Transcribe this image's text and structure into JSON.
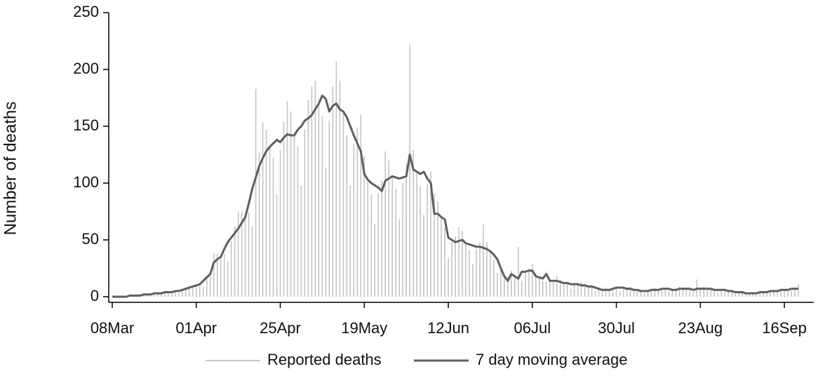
{
  "chart_data": {
    "type": "bar",
    "y_label": "Number of deaths",
    "categories": [
      "08Mar",
      null,
      null,
      null,
      null,
      null,
      null,
      null,
      null,
      null,
      null,
      null,
      null,
      null,
      null,
      null,
      null,
      null,
      null,
      null,
      null,
      null,
      null,
      null,
      "01Apr",
      null,
      null,
      null,
      null,
      null,
      null,
      null,
      null,
      null,
      null,
      null,
      null,
      null,
      null,
      null,
      null,
      null,
      null,
      null,
      null,
      null,
      null,
      null,
      "25Apr",
      null,
      null,
      null,
      null,
      null,
      null,
      null,
      null,
      null,
      null,
      null,
      null,
      null,
      null,
      null,
      null,
      null,
      null,
      null,
      null,
      null,
      null,
      null,
      "19May",
      null,
      null,
      null,
      null,
      null,
      null,
      null,
      null,
      null,
      null,
      null,
      null,
      null,
      null,
      null,
      null,
      null,
      null,
      null,
      null,
      null,
      null,
      null,
      "12Jun",
      null,
      null,
      null,
      null,
      null,
      null,
      null,
      null,
      null,
      null,
      null,
      null,
      null,
      null,
      null,
      null,
      null,
      null,
      null,
      null,
      null,
      null,
      null,
      "06Jul",
      null,
      null,
      null,
      null,
      null,
      null,
      null,
      null,
      null,
      null,
      null,
      null,
      null,
      null,
      null,
      null,
      null,
      null,
      null,
      null,
      null,
      null,
      null,
      "30Jul",
      null,
      null,
      null,
      null,
      null,
      null,
      null,
      null,
      null,
      null,
      null,
      null,
      null,
      null,
      null,
      null,
      null,
      null,
      null,
      null,
      null,
      null,
      null,
      "23Aug",
      null,
      null,
      null,
      null,
      null,
      null,
      null,
      null,
      null,
      null,
      null,
      null,
      null,
      null,
      null,
      null,
      null,
      null,
      null,
      null,
      null,
      null,
      null,
      "16Sep",
      null,
      null,
      null,
      null
    ],
    "series": [
      {
        "name": "Reported deaths",
        "type": "bar",
        "color": "#c4c4c4",
        "values": [
          0,
          0,
          0,
          0,
          0,
          1,
          1,
          1,
          1,
          2,
          2,
          2,
          2,
          3,
          3,
          5,
          5,
          4,
          5,
          3,
          6,
          8,
          10,
          10,
          10,
          10,
          9,
          16,
          22,
          38,
          38,
          35,
          38,
          31,
          49,
          62,
          75,
          75,
          70,
          74,
          62,
          183,
          127,
          153,
          147,
          132,
          122,
          90,
          129,
          154,
          172,
          163,
          142,
          132,
          98,
          147,
          173,
          185,
          190,
          170,
          159,
          113,
          155,
          185,
          207,
          190,
          163,
          142,
          98,
          135,
          149,
          160,
          124,
          103,
          90,
          64,
          91,
          102,
          128,
          120,
          106,
          95,
          68,
          100,
          117,
          222,
          129,
          110,
          97,
          72,
          99,
          110,
          91,
          84,
          70,
          61,
          34,
          48,
          53,
          61,
          58,
          47,
          41,
          29,
          42,
          48,
          64,
          48,
          40,
          33,
          21,
          24,
          20,
          18,
          23,
          18,
          44,
          14,
          21,
          25,
          29,
          21,
          17,
          14,
          13,
          13,
          15,
          18,
          15,
          12,
          11,
          7,
          10,
          12,
          13,
          12,
          9,
          8,
          5,
          7,
          7,
          8,
          7,
          7,
          7,
          5,
          8,
          8,
          9,
          7,
          6,
          5,
          3,
          5,
          7,
          8,
          7,
          7,
          6,
          5,
          6,
          7,
          9,
          8,
          7,
          6,
          4,
          15,
          8,
          9,
          8,
          7,
          5,
          4,
          6,
          7,
          6,
          6,
          4,
          4,
          3,
          3,
          3,
          4,
          3,
          4,
          4,
          3,
          5,
          6,
          6,
          7,
          6,
          5,
          5,
          7,
          11
        ]
      },
      {
        "name": "7 day moving average",
        "type": "line",
        "color": "#5f5f5f",
        "values": [
          0,
          0,
          0,
          0,
          0,
          1,
          1,
          1,
          1,
          2,
          2,
          2,
          3,
          3,
          3,
          4,
          4,
          4,
          5,
          5,
          6,
          7,
          8,
          9,
          10,
          11,
          14,
          17,
          20,
          30,
          33,
          35,
          42,
          48,
          52,
          56,
          60,
          65,
          70,
          82,
          95,
          105,
          115,
          122,
          128,
          132,
          135,
          138,
          136,
          140,
          143,
          142,
          142,
          147,
          150,
          155,
          157,
          160,
          165,
          170,
          177,
          174,
          163,
          168,
          170,
          165,
          163,
          158,
          150,
          142,
          135,
          128,
          108,
          103,
          100,
          98,
          96,
          93,
          102,
          104,
          106,
          105,
          104,
          105,
          106,
          125,
          112,
          110,
          108,
          110,
          104,
          100,
          73,
          73,
          70,
          68,
          52,
          50,
          48,
          49,
          50,
          47,
          46,
          45,
          44,
          44,
          43,
          42,
          40,
          37,
          33,
          25,
          18,
          14,
          20,
          18,
          16,
          22,
          22,
          23,
          23,
          18,
          17,
          16,
          20,
          14,
          14,
          14,
          13,
          12,
          12,
          11,
          11,
          11,
          10,
          10,
          9,
          9,
          8,
          7,
          6,
          6,
          6,
          7,
          8,
          8,
          8,
          7,
          7,
          6,
          6,
          5,
          5,
          5,
          6,
          6,
          6,
          7,
          7,
          7,
          6,
          6,
          7,
          7,
          7,
          7,
          6,
          7,
          7,
          7,
          7,
          7,
          6,
          6,
          6,
          6,
          5,
          5,
          4,
          4,
          4,
          3,
          3,
          3,
          3,
          4,
          4,
          4,
          5,
          5,
          5,
          6,
          6,
          6,
          7,
          7,
          7
        ]
      }
    ],
    "ylim": [
      0,
      250
    ],
    "yticks": [
      0,
      50,
      100,
      150,
      200,
      250
    ],
    "legend": "bottom"
  }
}
